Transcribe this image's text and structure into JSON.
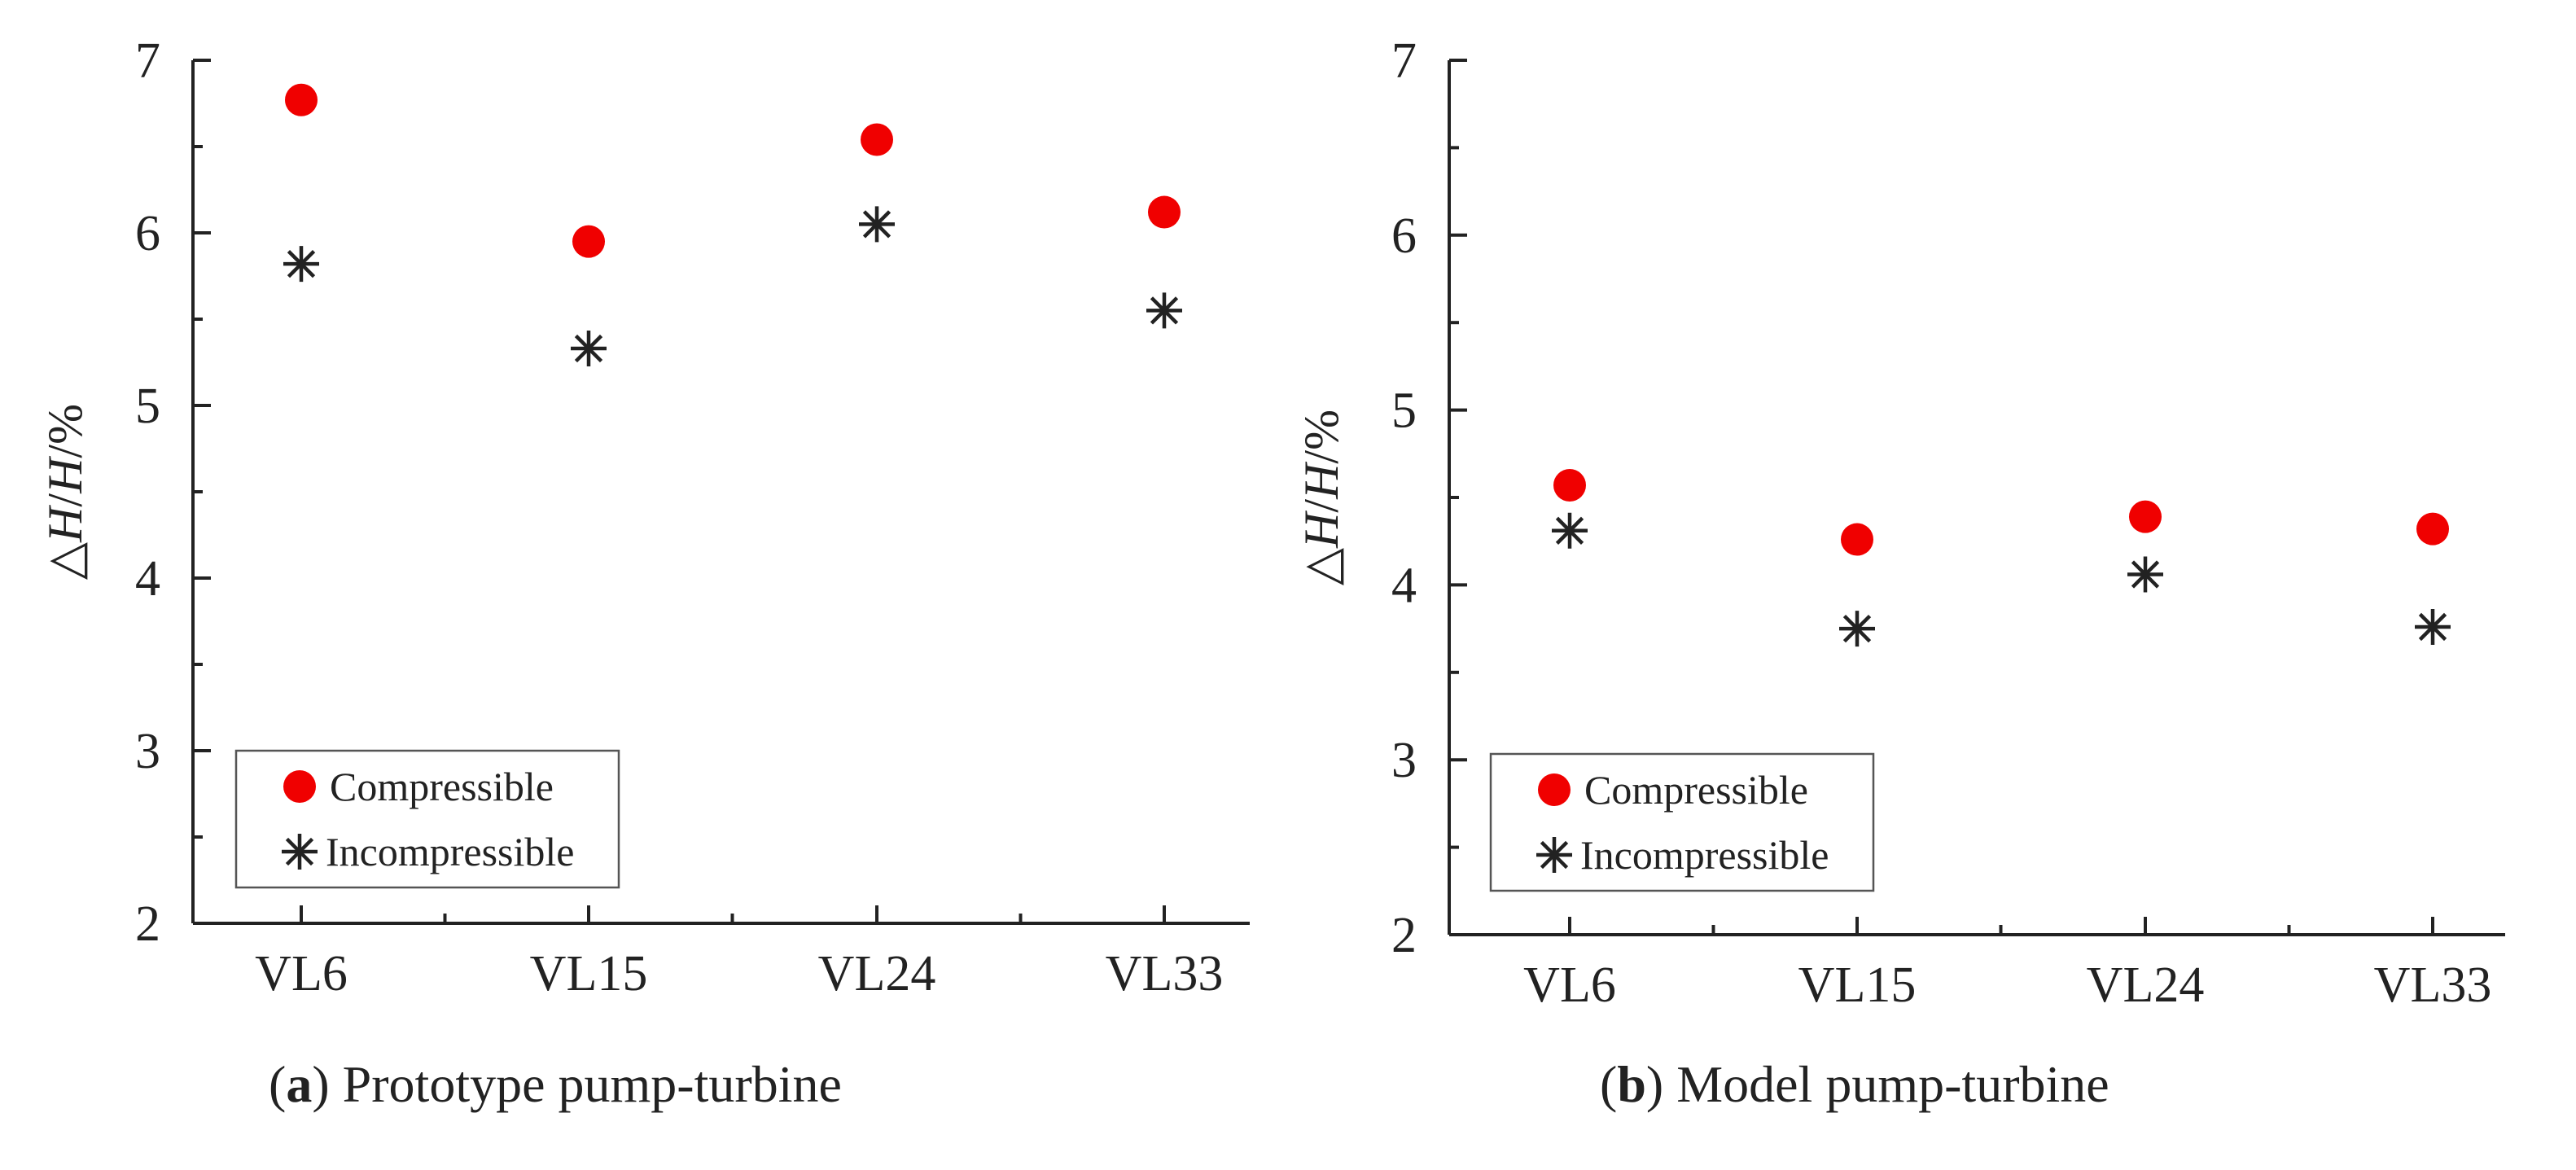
{
  "colors": {
    "compressible": "#f00000",
    "incompressible": "#222222",
    "axis": "#222222"
  },
  "chart_data": [
    {
      "type": "scatter",
      "panel_letter": "a",
      "caption": "Prototype pump-turbine",
      "ylabel_parts": [
        "△",
        "H",
        "/",
        "H",
        "/%"
      ],
      "ylim": [
        2,
        7
      ],
      "yticks": [
        2,
        3,
        4,
        5,
        6,
        7
      ],
      "categories": [
        "VL6",
        "VL15",
        "VL24",
        "VL33"
      ],
      "grid": false,
      "legend_position": "bottom-left",
      "series": [
        {
          "name": "Compressible",
          "marker": "circle",
          "values": [
            6.77,
            5.95,
            6.54,
            6.12
          ]
        },
        {
          "name": "Incompressible",
          "marker": "asterisk",
          "values": [
            5.82,
            5.33,
            6.05,
            5.55
          ]
        }
      ]
    },
    {
      "type": "scatter",
      "panel_letter": "b",
      "caption": "Model pump-turbine",
      "ylabel_parts": [
        "△",
        "H",
        "/",
        "H",
        "/%"
      ],
      "ylim": [
        2,
        7
      ],
      "yticks": [
        2,
        3,
        4,
        5,
        6,
        7
      ],
      "categories": [
        "VL6",
        "VL15",
        "VL24",
        "VL33"
      ],
      "grid": false,
      "legend_position": "bottom-left",
      "series": [
        {
          "name": "Compressible",
          "marker": "circle",
          "values": [
            4.57,
            4.26,
            4.39,
            4.32
          ]
        },
        {
          "name": "Incompressible",
          "marker": "asterisk",
          "values": [
            4.31,
            3.75,
            4.06,
            3.76
          ]
        }
      ]
    }
  ]
}
